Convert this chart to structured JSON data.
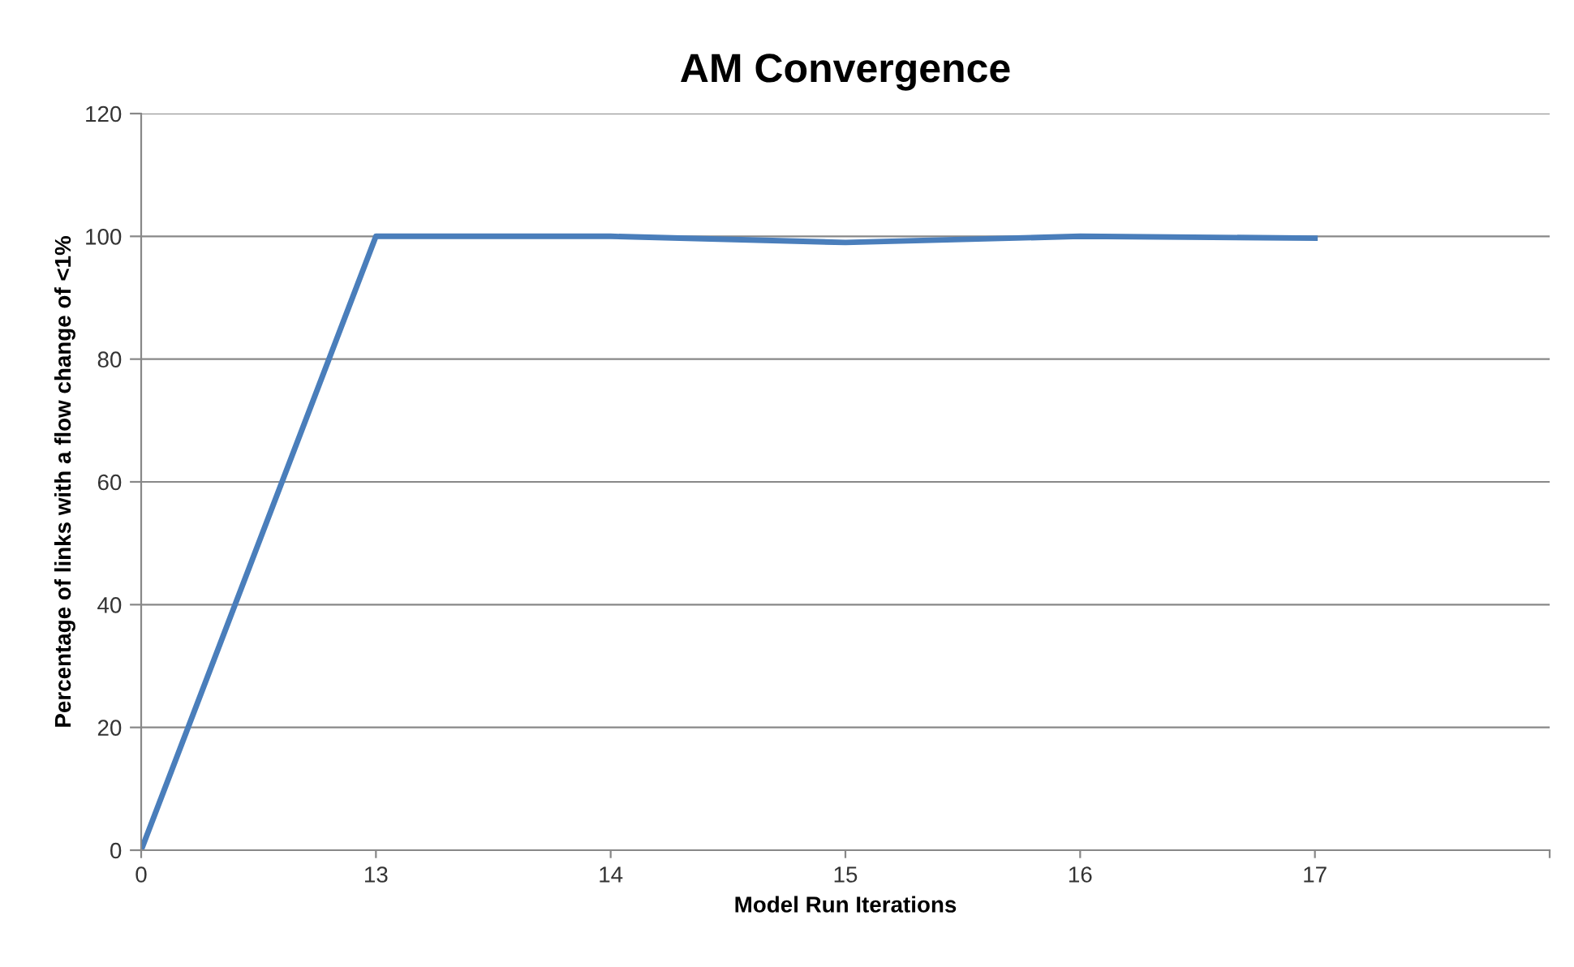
{
  "chart_data": {
    "type": "line",
    "title": "AM Convergence",
    "xlabel": "Model Run Iterations",
    "ylabel": "Percentage of links with a flow change of <1%",
    "categories": [
      "0",
      "13",
      "14",
      "15",
      "16",
      "17",
      null
    ],
    "series": [
      {
        "color": "#4a7ebb",
        "values": [
          0,
          100,
          100,
          99,
          100,
          99.7,
          null
        ]
      }
    ],
    "ylim": [
      0,
      120
    ],
    "yticks": [
      0,
      20,
      40,
      60,
      80,
      100,
      120
    ],
    "grid": "y",
    "legend": false,
    "marker": "none",
    "line_style": "solid"
  }
}
